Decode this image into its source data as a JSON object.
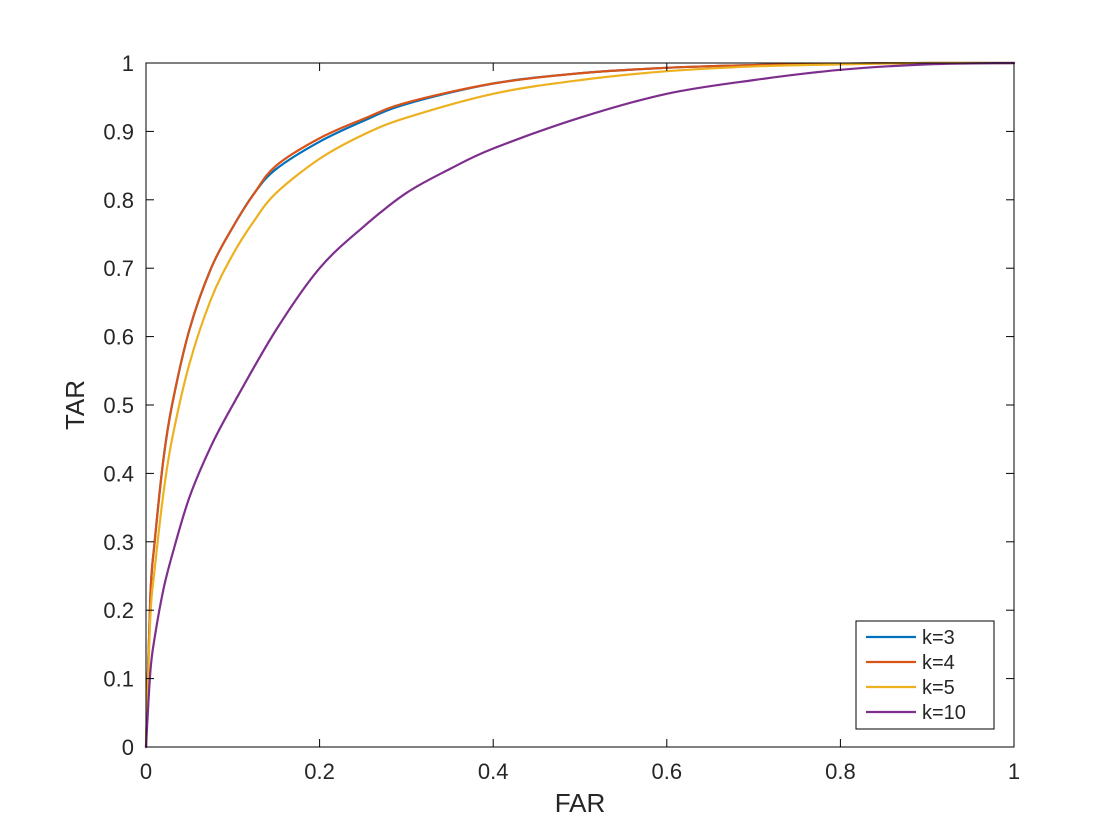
{
  "chart_data": {
    "type": "line",
    "title": "",
    "xlabel": "FAR",
    "ylabel": "TAR",
    "xlim": [
      0,
      1
    ],
    "ylim": [
      0,
      1
    ],
    "xticks": [
      0,
      0.2,
      0.4,
      0.6,
      0.8,
      1
    ],
    "yticks": [
      0,
      0.1,
      0.2,
      0.3,
      0.4,
      0.5,
      0.6,
      0.7,
      0.8,
      0.9,
      1
    ],
    "xtick_labels": [
      "0",
      "0.2",
      "0.4",
      "0.6",
      "0.8",
      "1"
    ],
    "ytick_labels": [
      "0",
      "0.1",
      "0.2",
      "0.3",
      "0.4",
      "0.5",
      "0.6",
      "0.7",
      "0.8",
      "0.9",
      "1"
    ],
    "grid": false,
    "legend_position": "bottom-right",
    "series": [
      {
        "name": "k=3",
        "color": "#0072BD",
        "x": [
          0,
          0.005,
          0.01,
          0.02,
          0.03,
          0.05,
          0.075,
          0.1,
          0.125,
          0.15,
          0.2,
          0.25,
          0.3,
          0.4,
          0.5,
          0.6,
          0.7,
          0.8,
          0.9,
          1.0
        ],
        "y": [
          0,
          0.22,
          0.3,
          0.42,
          0.5,
          0.61,
          0.7,
          0.76,
          0.81,
          0.845,
          0.885,
          0.915,
          0.94,
          0.97,
          0.985,
          0.993,
          0.997,
          0.999,
          1.0,
          1.0
        ]
      },
      {
        "name": "k=4",
        "color": "#D95319",
        "x": [
          0,
          0.005,
          0.01,
          0.02,
          0.03,
          0.05,
          0.075,
          0.1,
          0.125,
          0.15,
          0.2,
          0.25,
          0.3,
          0.4,
          0.5,
          0.6,
          0.7,
          0.8,
          0.9,
          1.0
        ],
        "y": [
          0,
          0.22,
          0.3,
          0.42,
          0.5,
          0.61,
          0.7,
          0.76,
          0.81,
          0.85,
          0.89,
          0.918,
          0.942,
          0.97,
          0.985,
          0.993,
          0.997,
          0.999,
          1.0,
          1.0
        ]
      },
      {
        "name": "k=5",
        "color": "#EDB120",
        "x": [
          0,
          0.005,
          0.01,
          0.02,
          0.03,
          0.05,
          0.075,
          0.1,
          0.125,
          0.15,
          0.2,
          0.25,
          0.3,
          0.4,
          0.5,
          0.6,
          0.7,
          0.8,
          0.9,
          1.0
        ],
        "y": [
          0,
          0.19,
          0.26,
          0.37,
          0.45,
          0.56,
          0.655,
          0.72,
          0.77,
          0.81,
          0.86,
          0.895,
          0.92,
          0.955,
          0.975,
          0.988,
          0.995,
          0.998,
          1.0,
          1.0
        ]
      },
      {
        "name": "k=10",
        "color": "#7E2F8E",
        "x": [
          0,
          0.005,
          0.01,
          0.02,
          0.03,
          0.05,
          0.075,
          0.1,
          0.15,
          0.2,
          0.25,
          0.3,
          0.35,
          0.4,
          0.5,
          0.6,
          0.7,
          0.8,
          0.9,
          1.0
        ],
        "y": [
          0,
          0.11,
          0.16,
          0.23,
          0.28,
          0.365,
          0.44,
          0.5,
          0.61,
          0.7,
          0.76,
          0.81,
          0.845,
          0.875,
          0.92,
          0.955,
          0.975,
          0.99,
          0.998,
          1.0
        ]
      }
    ]
  }
}
